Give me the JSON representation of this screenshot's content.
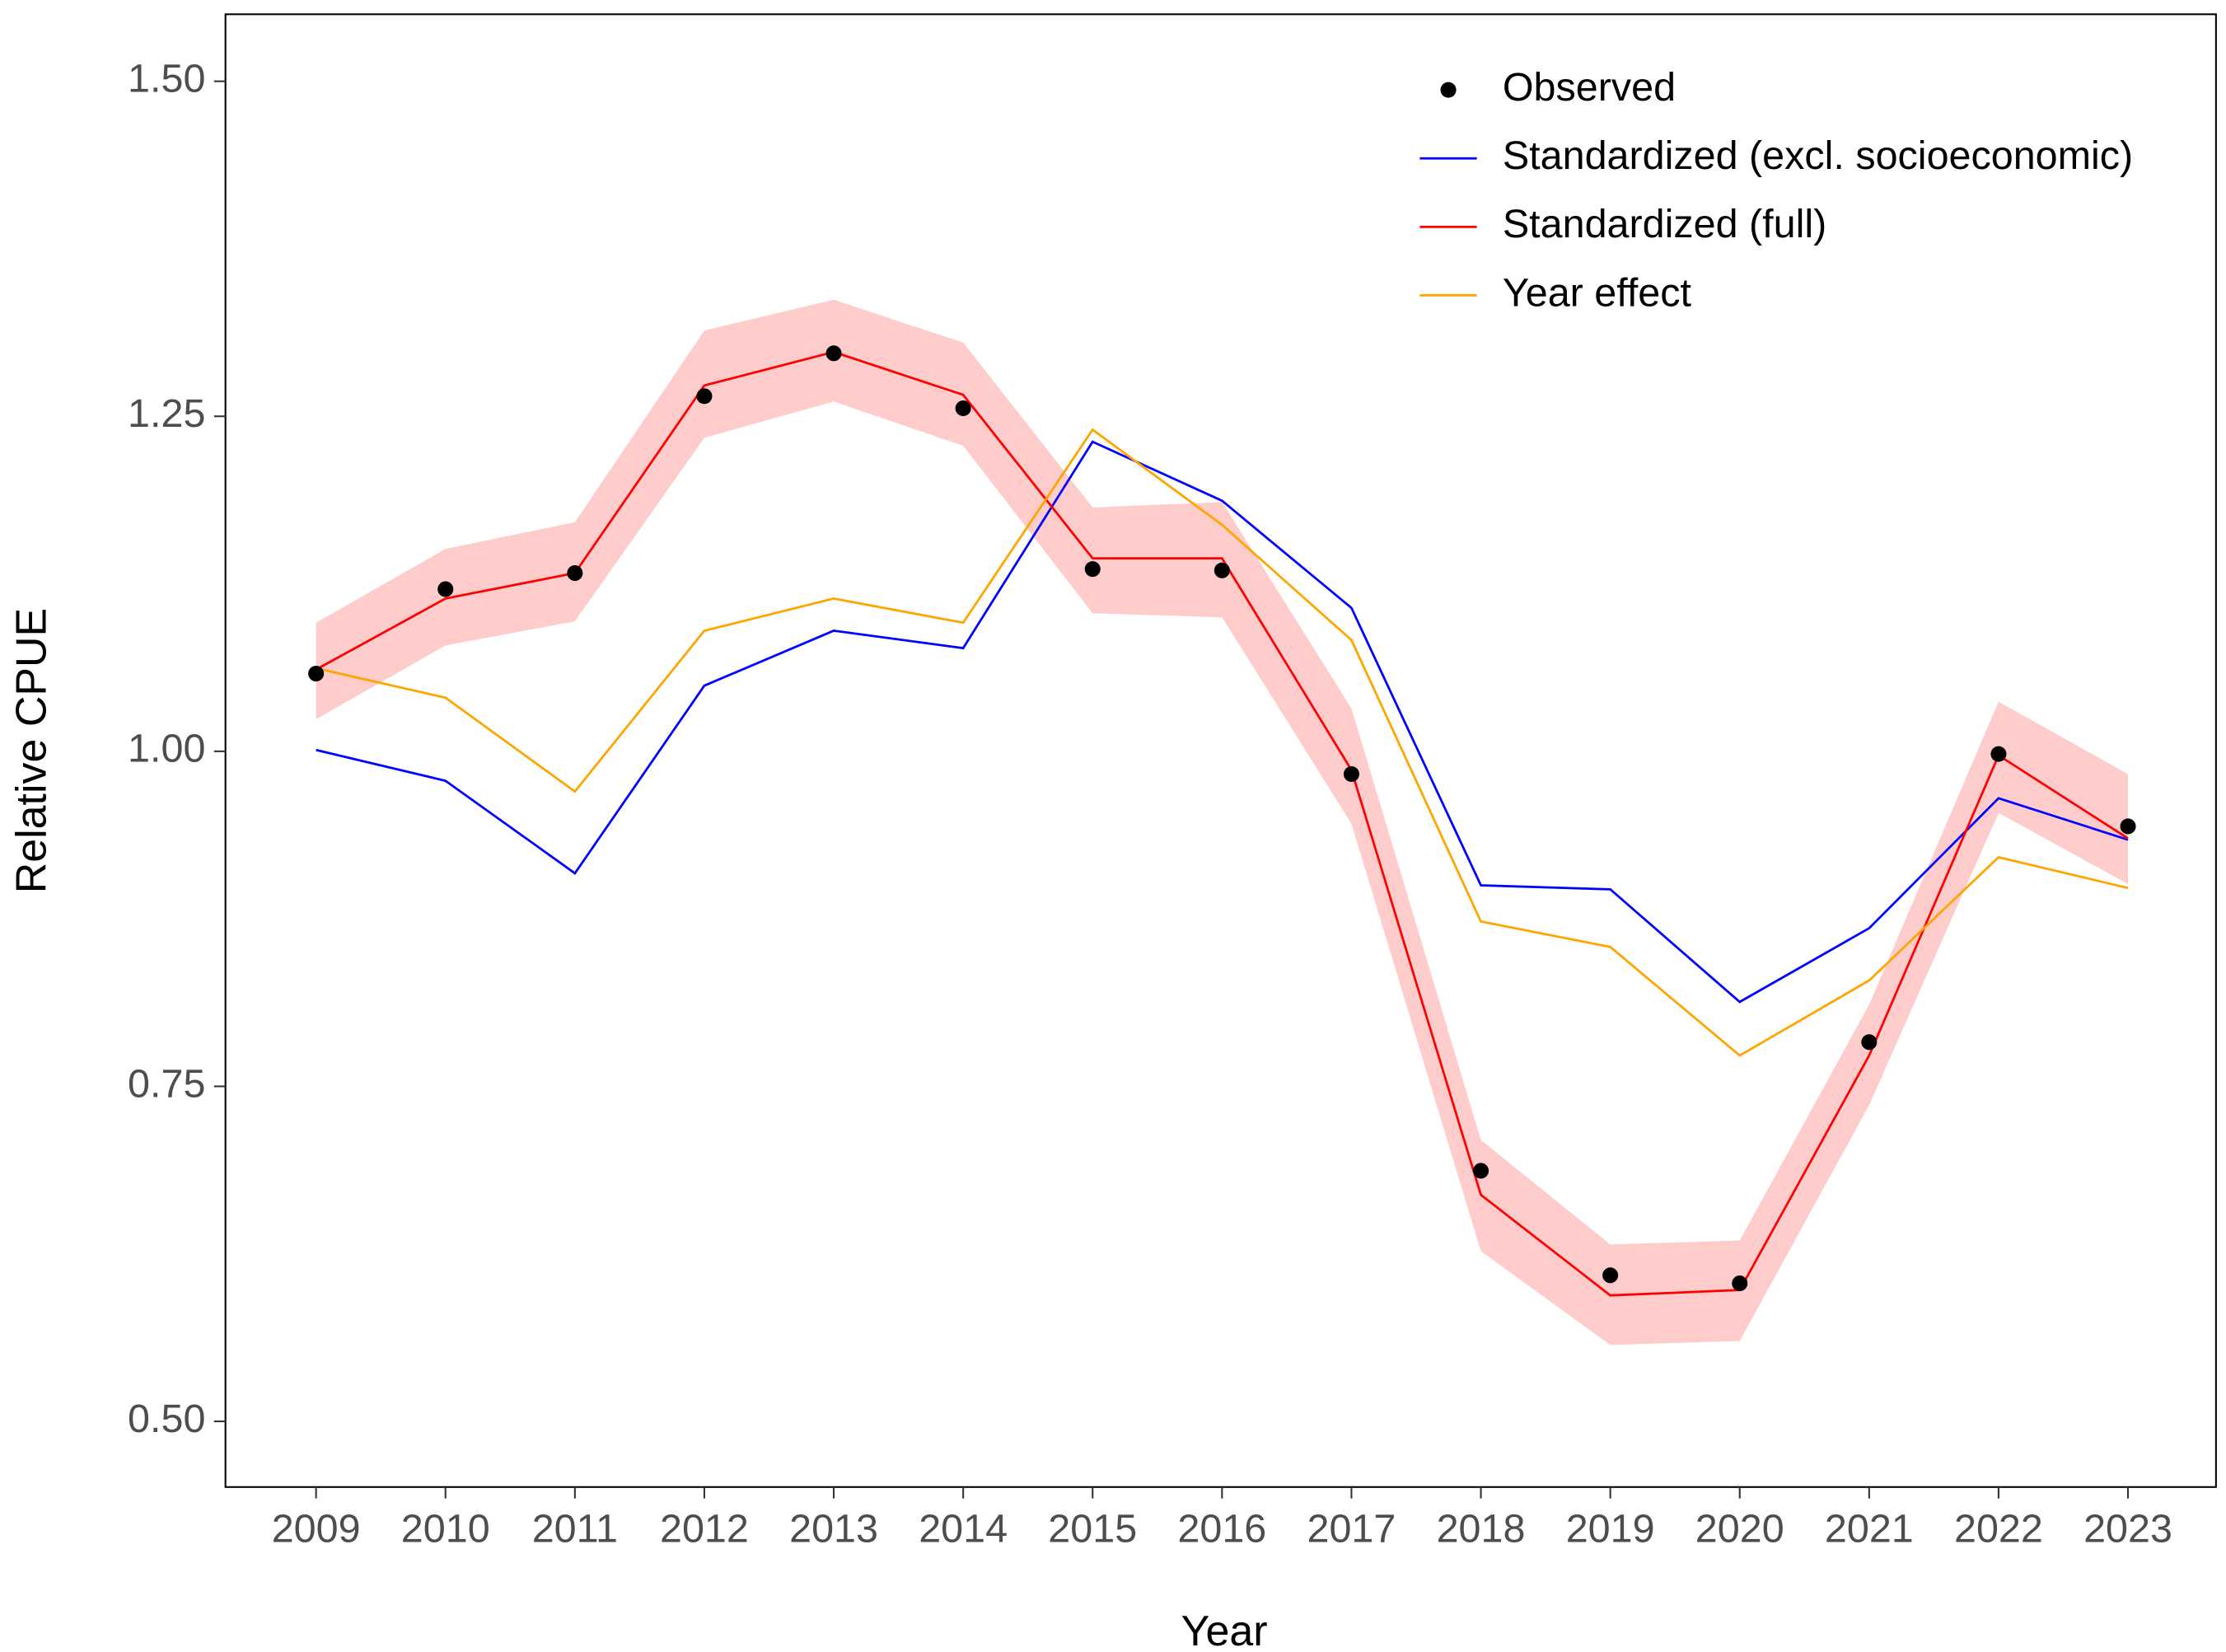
{
  "chart_data": {
    "type": "line",
    "x_label": "Year",
    "y_label": "Relative CPUE",
    "x": [
      2009,
      2010,
      2011,
      2012,
      2013,
      2014,
      2015,
      2016,
      2017,
      2018,
      2019,
      2020,
      2021,
      2022,
      2023
    ],
    "xlim": [
      2008.3,
      2023.68
    ],
    "xticks": [
      2009,
      2010,
      2011,
      2012,
      2013,
      2014,
      2015,
      2016,
      2017,
      2018,
      2019,
      2020,
      2021,
      2022,
      2023
    ],
    "ylim": [
      0.451,
      1.55
    ],
    "yticks": [
      {
        "value": 0.5,
        "label": "0.50"
      },
      {
        "value": 0.75,
        "label": "0.75"
      },
      {
        "value": 1,
        "label": "1.00"
      },
      {
        "value": 1.25,
        "label": "1.25"
      },
      {
        "value": 1.5,
        "label": "1.50"
      }
    ],
    "grid": false,
    "legend_position": "top-right",
    "ribbon": {
      "color": "#ffcccc",
      "lower": [
        1.024,
        1.079,
        1.097,
        1.234,
        1.261,
        1.228,
        1.103,
        1.1,
        0.946,
        0.627,
        0.557,
        0.56,
        0.736,
        0.954,
        0.901
      ],
      "upper": [
        1.096,
        1.151,
        1.171,
        1.314,
        1.337,
        1.305,
        1.182,
        1.186,
        1.032,
        0.71,
        0.632,
        0.635,
        0.811,
        1.037,
        0.983
      ]
    },
    "series": [
      {
        "name": "Observed",
        "color": "#000000",
        "mark": "point",
        "values": [
          1.058,
          1.121,
          1.133,
          1.265,
          1.297,
          1.256,
          1.136,
          1.135,
          0.983,
          0.687,
          0.609,
          0.603,
          0.783,
          0.998,
          0.944
        ]
      },
      {
        "name": "Standardized (excl. socioeconomic)",
        "color": "#0000ff",
        "mark": "line",
        "values": [
          1.001,
          0.978,
          0.909,
          1.049,
          1.09,
          1.077,
          1.231,
          1.187,
          1.107,
          0.9,
          0.897,
          0.813,
          0.868,
          0.965,
          0.934
        ]
      },
      {
        "name": "Standardized (full)",
        "color": "#ff0000",
        "mark": "line",
        "values": [
          1.061,
          1.114,
          1.133,
          1.273,
          1.298,
          1.266,
          1.144,
          1.144,
          0.986,
          0.669,
          0.594,
          0.598,
          0.773,
          0.997,
          0.935
        ]
      },
      {
        "name": "Year effect",
        "color": "#ffa500",
        "mark": "line",
        "values": [
          1.062,
          1.04,
          0.97,
          1.09,
          1.114,
          1.096,
          1.24,
          1.169,
          1.083,
          0.873,
          0.854,
          0.773,
          0.829,
          0.921,
          0.898
        ]
      }
    ]
  }
}
